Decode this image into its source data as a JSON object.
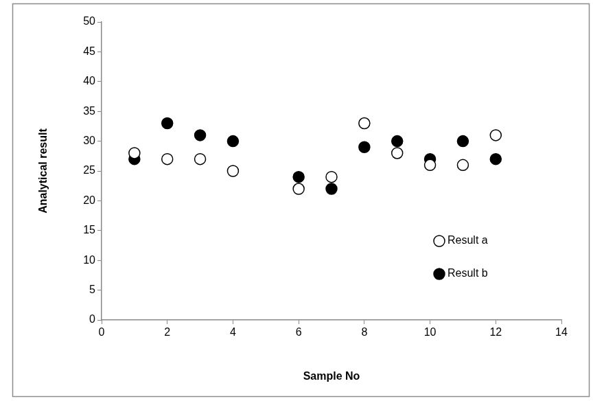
{
  "chart_data": {
    "type": "scatter",
    "x_label": "Sample No",
    "y_label": "Analytical result",
    "series": [
      {
        "name": "Result a",
        "color": "#000000",
        "marker": "open_circle",
        "x": [
          1,
          2,
          3,
          4,
          6,
          7,
          8,
          9,
          10,
          11,
          12
        ],
        "values": [
          28,
          27,
          27,
          25,
          22,
          24,
          33,
          28,
          26,
          26,
          31
        ]
      },
      {
        "name": "Result b",
        "color": "#000000",
        "marker": "circle",
        "x": [
          1,
          2,
          3,
          4,
          6,
          7,
          8,
          9,
          10,
          11,
          12
        ],
        "values": [
          27,
          33,
          31,
          30,
          24,
          22,
          29,
          30,
          27,
          30,
          27
        ]
      }
    ],
    "xlim": [
      0,
      14
    ],
    "xticks": [
      0,
      2,
      4,
      6,
      8,
      10,
      12,
      14
    ],
    "ylim": [
      0,
      50
    ],
    "yticks": [
      0,
      5,
      10,
      15,
      20,
      25,
      30,
      35,
      40,
      45,
      50
    ],
    "grid": false,
    "legend": "lower right"
  }
}
